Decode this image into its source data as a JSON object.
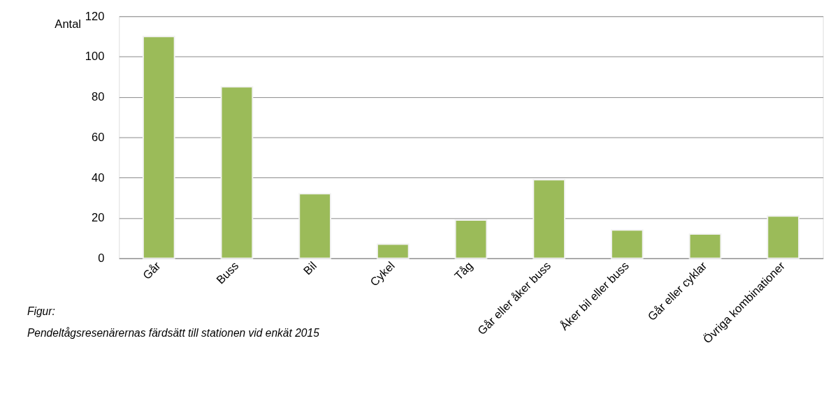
{
  "chart_data": {
    "type": "bar",
    "ylabel": "Antal",
    "categories": [
      "Går",
      "Buss",
      "Bil",
      "Cykel",
      "Tåg",
      "Går eller åker buss",
      "Åker bil eller buss",
      "Går eller cyklar",
      "Övriga kombinationer"
    ],
    "values": [
      110,
      85,
      32,
      7,
      19,
      39,
      14,
      12,
      21
    ],
    "color": "#9bbb59",
    "ylim": [
      0,
      120
    ],
    "yticks": [
      0,
      20,
      40,
      60,
      80,
      100,
      120
    ],
    "grid": "y",
    "annotations": [
      "Figur:",
      "Pendeltågsresenärernas färdsätt till stationen vid enkät 2015"
    ]
  }
}
